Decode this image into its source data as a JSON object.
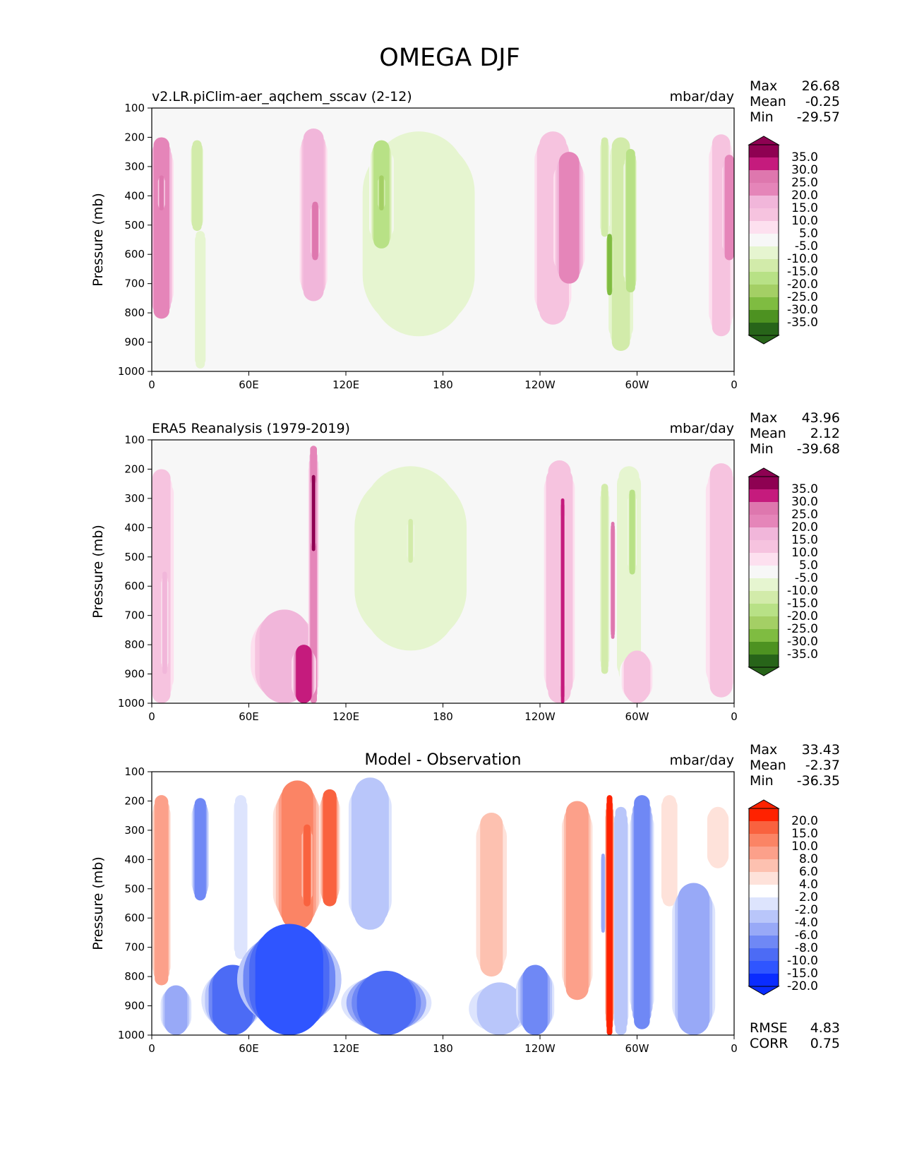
{
  "figure": {
    "title": "OMEGA DJF"
  },
  "labels": {
    "max": "Max",
    "mean": "Mean",
    "min": "Min",
    "rmse": "RMSE",
    "corr": "CORR"
  },
  "palettes": {
    "piyg": [
      "#276419",
      "#4d9221",
      "#7fbc41",
      "#a4cf65",
      "#b8e186",
      "#d2ebaa",
      "#e6f5d0",
      "#f7f7f7",
      "#fde0ef",
      "#f6c3df",
      "#f1b6da",
      "#e585b9",
      "#de77ae",
      "#c51b7d",
      "#8e0152"
    ],
    "diff": [
      "#0a2cff",
      "#2f55ff",
      "#4c6bf5",
      "#6f88f5",
      "#98a9f7",
      "#b9c6fa",
      "#dde4fd",
      "#ffffff",
      "#fee2da",
      "#fdc1b0",
      "#fca08a",
      "#fb8465",
      "#f9623f",
      "#ff2200"
    ]
  },
  "chart_data": [
    {
      "type": "heatmap",
      "panel": "test",
      "title": "v2.LR.piClim-aer_aqchem_sscav (2-12)",
      "title_position": "left",
      "units": "mbar/day",
      "xlabel": "",
      "ylabel": "Pressure (mb)",
      "x_ticks": [
        "0",
        "60E",
        "120E",
        "180",
        "120W",
        "60W",
        "0"
      ],
      "x_range": [
        0,
        360
      ],
      "y_ticks": [
        "100",
        "200",
        "300",
        "400",
        "500",
        "600",
        "700",
        "800",
        "900",
        "1000"
      ],
      "y_range": [
        100,
        1000
      ],
      "stats": {
        "max": "26.68",
        "mean": "-0.25",
        "min": "-29.57"
      },
      "colorbar": {
        "palette": "piyg",
        "labels": [
          "35.0",
          "30.0",
          "25.0",
          "20.0",
          "15.0",
          "10.0",
          "5.0",
          "-5.0",
          "-10.0",
          "-15.0",
          "-20.0",
          "-25.0",
          "-30.0",
          "-35.0"
        ]
      },
      "features": [
        {
          "lon": 6,
          "p_top": 200,
          "p_bot": 820,
          "w": 7,
          "v": 22
        },
        {
          "lon": 6,
          "p_top": 330,
          "p_bot": 450,
          "w": 2,
          "v": 26
        },
        {
          "lon": 28,
          "p_top": 210,
          "p_bot": 520,
          "w": 4,
          "v": -15
        },
        {
          "lon": 30,
          "p_top": 520,
          "p_bot": 990,
          "w": 4,
          "v": -8
        },
        {
          "lon": 100,
          "p_top": 170,
          "p_bot": 760,
          "w": 9,
          "v": 15
        },
        {
          "lon": 101,
          "p_top": 420,
          "p_bot": 620,
          "w": 2.5,
          "v": 28
        },
        {
          "lon": 142,
          "p_top": 210,
          "p_bot": 580,
          "w": 7,
          "v": -16
        },
        {
          "lon": 142,
          "p_top": 330,
          "p_bot": 450,
          "w": 2,
          "v": -24
        },
        {
          "lon": 165,
          "p_top": 180,
          "p_bot": 880,
          "w": 42,
          "v": -8
        },
        {
          "lon": 248,
          "p_top": 180,
          "p_bot": 840,
          "w": 12,
          "v": 14
        },
        {
          "lon": 258,
          "p_top": 250,
          "p_bot": 700,
          "w": 9,
          "v": 22
        },
        {
          "lon": 280,
          "p_top": 200,
          "p_bot": 540,
          "w": 3,
          "v": -12
        },
        {
          "lon": 283,
          "p_top": 530,
          "p_bot": 740,
          "w": 2,
          "v": -30
        },
        {
          "lon": 290,
          "p_top": 200,
          "p_bot": 930,
          "w": 8,
          "v": -11
        },
        {
          "lon": 296,
          "p_top": 240,
          "p_bot": 730,
          "w": 4,
          "v": -17
        },
        {
          "lon": 352,
          "p_top": 190,
          "p_bot": 880,
          "w": 8,
          "v": 12
        },
        {
          "lon": 357,
          "p_top": 260,
          "p_bot": 620,
          "w": 4,
          "v": 20
        }
      ]
    },
    {
      "type": "heatmap",
      "panel": "reference",
      "title": "ERA5 Reanalysis (1979-2019)",
      "title_position": "left",
      "units": "mbar/day",
      "xlabel": "",
      "ylabel": "Pressure (mb)",
      "x_ticks": [
        "0",
        "60E",
        "120E",
        "180",
        "120W",
        "60W",
        "0"
      ],
      "x_range": [
        0,
        360
      ],
      "y_ticks": [
        "100",
        "200",
        "300",
        "400",
        "500",
        "600",
        "700",
        "800",
        "900",
        "1000"
      ],
      "y_range": [
        100,
        1000
      ],
      "stats": {
        "max": "43.96",
        "mean": "2.12",
        "min": "-39.68"
      },
      "colorbar": {
        "palette": "piyg",
        "labels": [
          "35.0",
          "30.0",
          "25.0",
          "20.0",
          "15.0",
          "10.0",
          "5.0",
          "-5.0",
          "-10.0",
          "-15.0",
          "-20.0",
          "-25.0",
          "-30.0",
          "-35.0"
        ]
      },
      "features": [
        {
          "lon": 6,
          "p_top": 200,
          "p_bot": 1000,
          "w": 8,
          "v": 11
        },
        {
          "lon": 8,
          "p_top": 550,
          "p_bot": 900,
          "w": 2,
          "v": 18
        },
        {
          "lon": 82,
          "p_top": 680,
          "p_bot": 1000,
          "w": 22,
          "v": 18
        },
        {
          "lon": 94,
          "p_top": 800,
          "p_bot": 1000,
          "w": 7,
          "v": 32
        },
        {
          "lon": 100,
          "p_top": 120,
          "p_bot": 1000,
          "w": 3,
          "v": 20
        },
        {
          "lon": 100,
          "p_top": 220,
          "p_bot": 480,
          "w": 1.5,
          "v": 35
        },
        {
          "lon": 160,
          "p_top": 190,
          "p_bot": 820,
          "w": 42,
          "v": -9
        },
        {
          "lon": 160,
          "p_top": 370,
          "p_bot": 520,
          "w": 2,
          "v": -13
        },
        {
          "lon": 252,
          "p_top": 170,
          "p_bot": 1000,
          "w": 10,
          "v": 14
        },
        {
          "lon": 254,
          "p_top": 300,
          "p_bot": 1000,
          "w": 1.5,
          "v": 33
        },
        {
          "lon": 280,
          "p_top": 250,
          "p_bot": 900,
          "w": 3,
          "v": -11
        },
        {
          "lon": 285,
          "p_top": 380,
          "p_bot": 780,
          "w": 1.5,
          "v": 27
        },
        {
          "lon": 295,
          "p_top": 190,
          "p_bot": 930,
          "w": 9,
          "v": -10
        },
        {
          "lon": 297,
          "p_top": 270,
          "p_bot": 560,
          "w": 2.5,
          "v": -17
        },
        {
          "lon": 300,
          "p_top": 820,
          "p_bot": 1000,
          "w": 10,
          "v": 14
        },
        {
          "lon": 352,
          "p_top": 180,
          "p_bot": 980,
          "w": 10,
          "v": 11
        }
      ]
    },
    {
      "type": "heatmap",
      "panel": "difference",
      "title": "Model - Observation",
      "title_position": "center",
      "units": "mbar/day",
      "xlabel": "",
      "ylabel": "Pressure (mb)",
      "x_ticks": [
        "0",
        "60E",
        "120E",
        "180",
        "120W",
        "60W",
        "0"
      ],
      "x_range": [
        0,
        360
      ],
      "y_ticks": [
        "100",
        "200",
        "300",
        "400",
        "500",
        "600",
        "700",
        "800",
        "900",
        "1000"
      ],
      "y_range": [
        100,
        1000
      ],
      "stats": {
        "max": "33.43",
        "mean": "-2.37",
        "min": "-36.35"
      },
      "colorbar": {
        "palette": "diff",
        "labels": [
          "20.0",
          "15.0",
          "10.0",
          "8.0",
          "6.0",
          "4.0",
          "2.0",
          "-2.0",
          "-4.0",
          "-6.0",
          "-8.0",
          "-10.0",
          "-15.0",
          "-20.0"
        ]
      },
      "metrics": {
        "rmse": "4.83",
        "corr": "0.75"
      },
      "features": [
        {
          "lon": 6,
          "p_top": 180,
          "p_bot": 830,
          "w": 6,
          "v": 7
        },
        {
          "lon": 30,
          "p_top": 190,
          "p_bot": 540,
          "w": 5,
          "v": -9
        },
        {
          "lon": 55,
          "p_top": 180,
          "p_bot": 740,
          "w": 5,
          "v": -4
        },
        {
          "lon": 90,
          "p_top": 130,
          "p_bot": 640,
          "w": 14,
          "v": 9
        },
        {
          "lon": 96,
          "p_top": 280,
          "p_bot": 560,
          "w": 3,
          "v": 13
        },
        {
          "lon": 110,
          "p_top": 160,
          "p_bot": 560,
          "w": 6,
          "v": 10
        },
        {
          "lon": 135,
          "p_top": 120,
          "p_bot": 640,
          "w": 14,
          "v": -6
        },
        {
          "lon": 85,
          "p_top": 620,
          "p_bot": 1000,
          "w": 30,
          "v": -18
        },
        {
          "lon": 50,
          "p_top": 760,
          "p_bot": 1000,
          "w": 18,
          "v": -12
        },
        {
          "lon": 145,
          "p_top": 780,
          "p_bot": 1000,
          "w": 26,
          "v": -13
        },
        {
          "lon": 15,
          "p_top": 830,
          "p_bot": 1000,
          "w": 10,
          "v": -8
        },
        {
          "lon": 215,
          "p_top": 820,
          "p_bot": 1000,
          "w": 20,
          "v": -5
        },
        {
          "lon": 237,
          "p_top": 760,
          "p_bot": 1000,
          "w": 11,
          "v": -9
        },
        {
          "lon": 210,
          "p_top": 240,
          "p_bot": 800,
          "w": 10,
          "v": 4
        },
        {
          "lon": 263,
          "p_top": 200,
          "p_bot": 880,
          "w": 10,
          "v": 6
        },
        {
          "lon": 283,
          "p_top": 180,
          "p_bot": 1000,
          "w": 2.5,
          "v": 18
        },
        {
          "lon": 279,
          "p_top": 380,
          "p_bot": 650,
          "w": 1.5,
          "v": -8
        },
        {
          "lon": 290,
          "p_top": 220,
          "p_bot": 1000,
          "w": 5,
          "v": -6
        },
        {
          "lon": 303,
          "p_top": 180,
          "p_bot": 980,
          "w": 7,
          "v": -10
        },
        {
          "lon": 335,
          "p_top": 480,
          "p_bot": 1000,
          "w": 14,
          "v": -7
        },
        {
          "lon": 350,
          "p_top": 220,
          "p_bot": 430,
          "w": 8,
          "v": 3
        },
        {
          "lon": 320,
          "p_top": 180,
          "p_bot": 560,
          "w": 6,
          "v": 3
        }
      ]
    }
  ]
}
